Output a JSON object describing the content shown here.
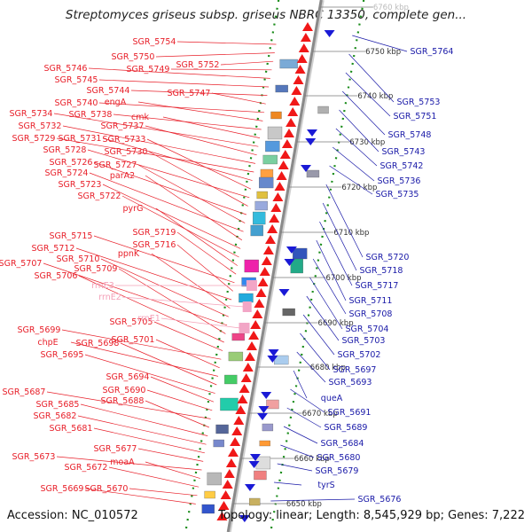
{
  "title": "Streptomyces griseus subsp. griseus NBRC 13350, complete gen...",
  "accession": "Accession: NC_010572",
  "summary": "Topology: linear; Length: 8,545,929 bp; Genes: 7,222",
  "colors": {
    "left_label": "#e8202a",
    "rna_label": "#f4a0b8",
    "right_label": "#1a1aa8",
    "backbone": "#8a8a8a",
    "ruler_dot": "#1a8c1a"
  },
  "kbp_markers": [
    "6760 kbp",
    "6750 kbp",
    "6740 kbp",
    "6730 kbp",
    "6720 kbp",
    "6710 kbp",
    "6700 kbp",
    "6690 kbp",
    "6680 kbp",
    "6670 kbp",
    "6660 kbp",
    "6650 kbp"
  ],
  "left_genes": [
    "SGR_5754",
    "SGR_5750",
    "SGR_5752",
    "SGR_5749",
    "SGR_5746",
    "SGR_5745",
    "SGR_5744",
    "SGR_5747",
    "SGR_5740",
    "engA",
    "SGR_5738",
    "cmk",
    "SGR_5734",
    "SGR_5737",
    "SGR_5732",
    "SGR_5729",
    "SGR_5731",
    "SGR_5733",
    "SGR_5728",
    "SGR_5730",
    "SGR_5726",
    "SGR_5727",
    "SGR_5724",
    "parA2",
    "SGR_5723",
    "SGR_5722",
    "pyrG",
    "SGR_5719",
    "SGR_5715",
    "SGR_5716",
    "SGR_5712",
    "ppnK",
    "SGR_5710",
    "SGR_5707",
    "SGR_5709",
    "SGR_5706",
    "SGR_5705",
    "SGR_5699",
    "SGR_5701",
    "chpE",
    "SGR_5698",
    "SGR_5695",
    "SGR_5694",
    "SGR_5690",
    "SGR_5687",
    "SGR_5688",
    "SGR_5685",
    "SGR_5682",
    "SGR_5681",
    "SGR_5677",
    "SGR_5673",
    "moaA",
    "SGR_5672",
    "SGR_5670",
    "SGR_5669"
  ],
  "rna_genes": [
    "rrnE3",
    "rrnE2",
    "rrnE1"
  ],
  "right_genes": [
    "SGR_5764",
    "SGR_5753",
    "SGR_5751",
    "SGR_5748",
    "SGR_5743",
    "SGR_5742",
    "SGR_5736",
    "SGR_5735",
    "SGR_5720",
    "SGR_5718",
    "SGR_5717",
    "SGR_5711",
    "SGR_5708",
    "SGR_5704",
    "SGR_5703",
    "SGR_5702",
    "SGR_5697",
    "SGR_5693",
    "queA",
    "SGR_5691",
    "SGR_5689",
    "SGR_5684",
    "SGR_5680",
    "SGR_5679",
    "tyrS",
    "SGR_5676"
  ]
}
